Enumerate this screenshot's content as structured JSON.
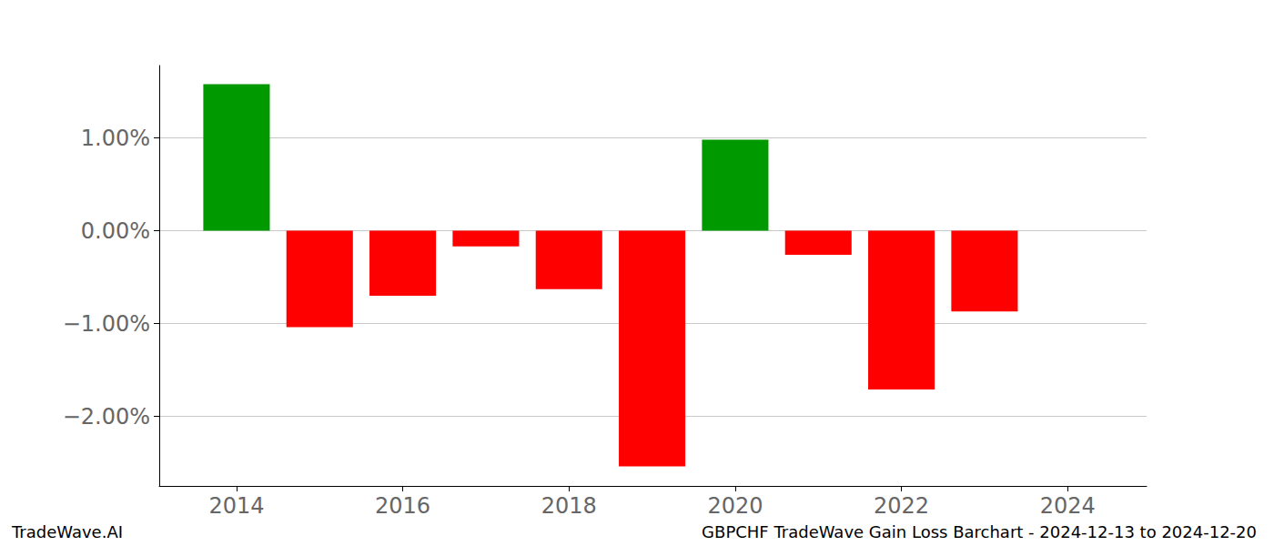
{
  "chart_data": {
    "type": "bar",
    "title": "GBPCHF TradeWave Gain Loss Barchart - 2024-12-13 to 2024-12-20",
    "subtitle": "TradeWave.AI",
    "x": [
      2014,
      2015,
      2016,
      2017,
      2018,
      2019,
      2020,
      2021,
      2022,
      2023
    ],
    "values": [
      1.58,
      -1.04,
      -0.7,
      -0.17,
      -0.63,
      -2.54,
      0.98,
      -0.26,
      -1.71,
      -0.87
    ],
    "colors": [
      "#009900",
      "#ff0000",
      "#ff0000",
      "#ff0000",
      "#ff0000",
      "#ff0000",
      "#009900",
      "#ff0000",
      "#ff0000",
      "#ff0000"
    ],
    "xlim": [
      2013.07,
      2024.95
    ],
    "xticks": [
      2014,
      2016,
      2018,
      2020,
      2022,
      2024
    ],
    "ylim": [
      -2.75,
      1.78
    ],
    "yticks": [
      {
        "value": -2,
        "label": "−2.00%"
      },
      {
        "value": -1,
        "label": "−1.00%"
      },
      {
        "value": 0,
        "label": "0.00%"
      },
      {
        "value": 1,
        "label": "1.00%"
      }
    ],
    "grid": "y"
  }
}
